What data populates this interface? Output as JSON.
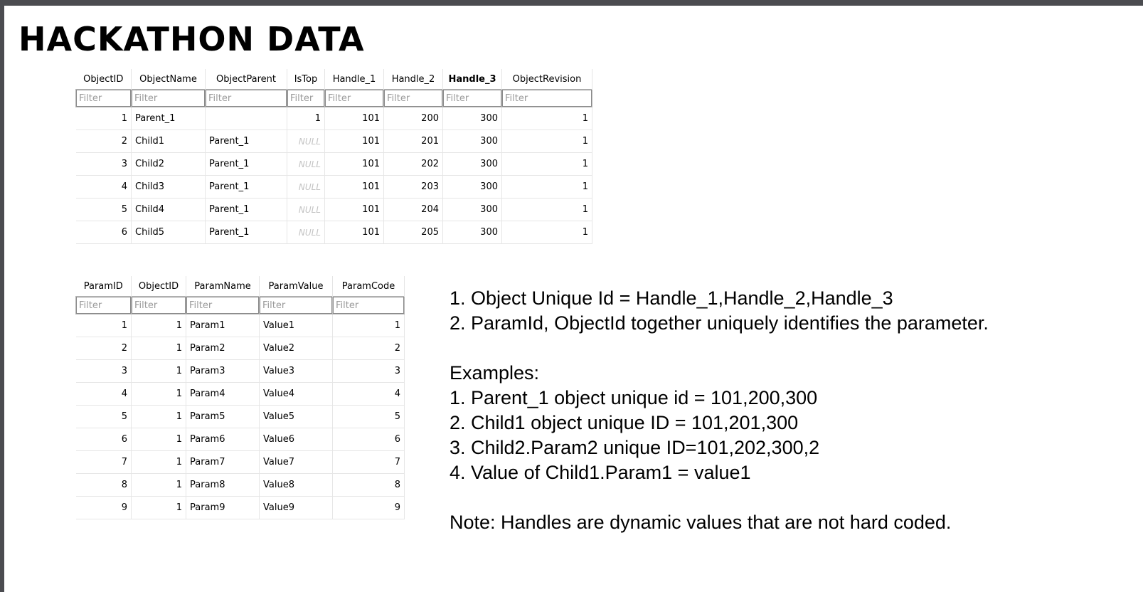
{
  "title": "HACKATHON DATA",
  "filter_placeholder": "Filter",
  "objects_table": {
    "columns": [
      "ObjectID",
      "ObjectName",
      "ObjectParent",
      "IsTop",
      "Handle_1",
      "Handle_2",
      "Handle_3",
      "ObjectRevision"
    ],
    "rows": [
      [
        "1",
        "Parent_1",
        "",
        "1",
        "101",
        "200",
        "300",
        "1"
      ],
      [
        "2",
        "Child1",
        "Parent_1",
        "NULL",
        "101",
        "201",
        "300",
        "1"
      ],
      [
        "3",
        "Child2",
        "Parent_1",
        "NULL",
        "101",
        "202",
        "300",
        "1"
      ],
      [
        "4",
        "Child3",
        "Parent_1",
        "NULL",
        "101",
        "203",
        "300",
        "1"
      ],
      [
        "5",
        "Child4",
        "Parent_1",
        "NULL",
        "101",
        "204",
        "300",
        "1"
      ],
      [
        "6",
        "Child5",
        "Parent_1",
        "NULL",
        "101",
        "205",
        "300",
        "1"
      ]
    ]
  },
  "params_table": {
    "columns": [
      "ParamID",
      "ObjectID",
      "ParamName",
      "ParamValue",
      "ParamCode"
    ],
    "rows": [
      [
        "1",
        "1",
        "Param1",
        "Value1",
        "1"
      ],
      [
        "2",
        "1",
        "Param2",
        "Value2",
        "2"
      ],
      [
        "3",
        "1",
        "Param3",
        "Value3",
        "3"
      ],
      [
        "4",
        "1",
        "Param4",
        "Value4",
        "4"
      ],
      [
        "5",
        "1",
        "Param5",
        "Value5",
        "5"
      ],
      [
        "6",
        "1",
        "Param6",
        "Value6",
        "6"
      ],
      [
        "7",
        "1",
        "Param7",
        "Value7",
        "7"
      ],
      [
        "8",
        "1",
        "Param8",
        "Value8",
        "8"
      ],
      [
        "9",
        "1",
        "Param9",
        "Value9",
        "9"
      ]
    ]
  },
  "notes": {
    "rule1": "1. Object Unique Id = Handle_1,Handle_2,Handle_3",
    "rule2": "2. ParamId, ObjectId together uniquely identifies the parameter.",
    "examples_heading": "Examples:",
    "example1": "1. Parent_1 object unique id = 101,200,300",
    "example2": "2. Child1 object unique ID = 101,201,300",
    "example3": "3. Child2.Param2 unique ID=101,202,300,2",
    "example4": "4. Value of Child1.Param1 = value1",
    "note": "Note: Handles are dynamic values that are not hard coded."
  }
}
